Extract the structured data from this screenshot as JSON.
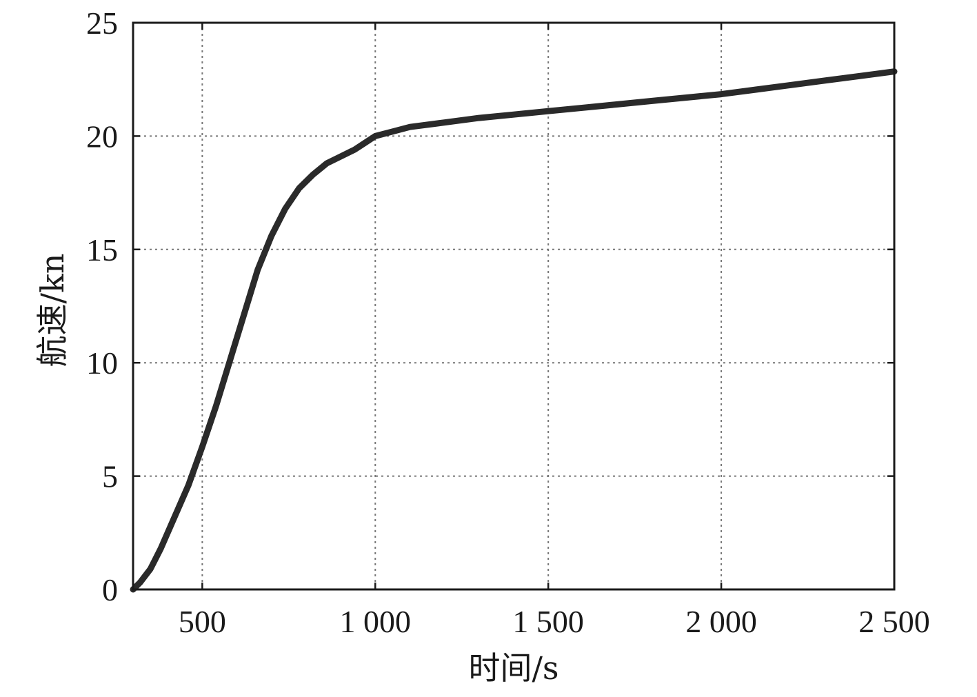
{
  "chart_data": {
    "type": "line",
    "xlabel": "时间/s",
    "ylabel": "航速/kn",
    "xlim": [
      300,
      2500
    ],
    "ylim": [
      0,
      25
    ],
    "x_ticks": [
      500,
      1000,
      1500,
      2000,
      2500
    ],
    "x_tick_labels": [
      "500",
      "1 000",
      "1 500",
      "2 000",
      "2 500"
    ],
    "y_ticks": [
      0,
      5,
      10,
      15,
      20,
      25
    ],
    "y_tick_labels": [
      "0",
      "5",
      "10",
      "15",
      "20",
      "25"
    ],
    "grid": true,
    "series": [
      {
        "x": [
          300,
          320,
          350,
          380,
          420,
          460,
          500,
          540,
          580,
          620,
          660,
          700,
          740,
          780,
          820,
          860,
          900,
          940,
          970,
          1000,
          1050,
          1100,
          1200,
          1300,
          1400,
          1500,
          1600,
          1700,
          1800,
          1900,
          2000,
          2100,
          2200,
          2300,
          2400,
          2500
        ],
        "y": [
          0,
          0.3,
          0.9,
          1.8,
          3.2,
          4.6,
          6.3,
          8.1,
          10.1,
          12.1,
          14.1,
          15.6,
          16.8,
          17.7,
          18.3,
          18.8,
          19.1,
          19.4,
          19.7,
          20.0,
          20.2,
          20.4,
          20.6,
          20.8,
          20.95,
          21.1,
          21.25,
          21.4,
          21.55,
          21.7,
          21.85,
          22.05,
          22.25,
          22.45,
          22.65,
          22.85
        ]
      }
    ]
  }
}
